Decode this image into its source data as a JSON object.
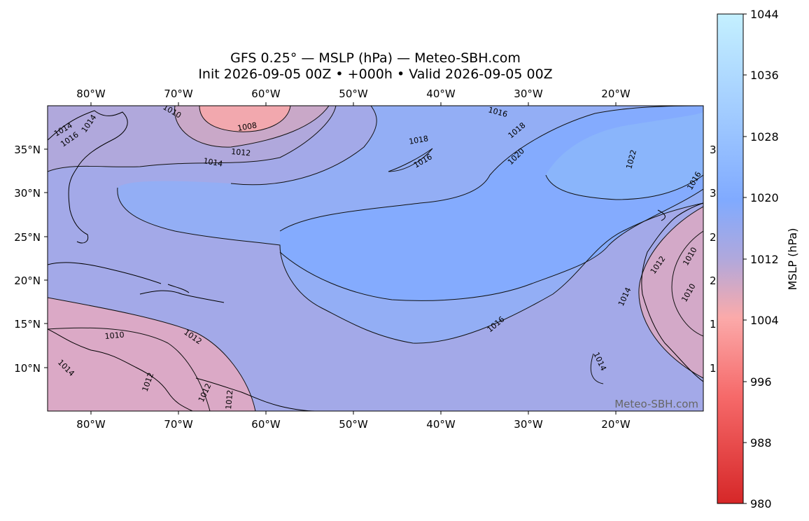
{
  "title": {
    "line1": "GFS 0.25° — MSLP (hPa) — Meteo-SBH.com",
    "line2": "Init 2026-09-05 00Z • +000h • Valid 2026-09-05 00Z"
  },
  "map": {
    "lon_ticks": [
      "80°W",
      "70°W",
      "60°W",
      "50°W",
      "40°W",
      "30°W",
      "20°W"
    ],
    "lat_ticks": [
      "35°N",
      "30°N",
      "25°N",
      "20°N",
      "15°N",
      "10°N"
    ],
    "right_partial_lat_ticks": [
      "3",
      "3",
      "2",
      "2",
      "1",
      "1"
    ],
    "watermark": "Meteo-SBH.com",
    "contour_labels": [
      "1014",
      "1016",
      "1014",
      "1010",
      "1008",
      "1012",
      "1014",
      "1016",
      "1018",
      "1016",
      "1018",
      "1020",
      "1022",
      "1016",
      "1010",
      "1012",
      "1014",
      "1016",
      "1010",
      "1012",
      "1014",
      "1010",
      "1014",
      "1012",
      "1012",
      "1012"
    ]
  },
  "colorbar": {
    "label": "MSLP (hPa)",
    "ticks": [
      "1044",
      "1036",
      "1028",
      "1020",
      "1012",
      "1004",
      "996",
      "988",
      "980"
    ],
    "min": 980,
    "max": 1044,
    "color_low": "#d62728",
    "color_mid": "#a8a8e6",
    "color_high": "#bfefff"
  }
}
